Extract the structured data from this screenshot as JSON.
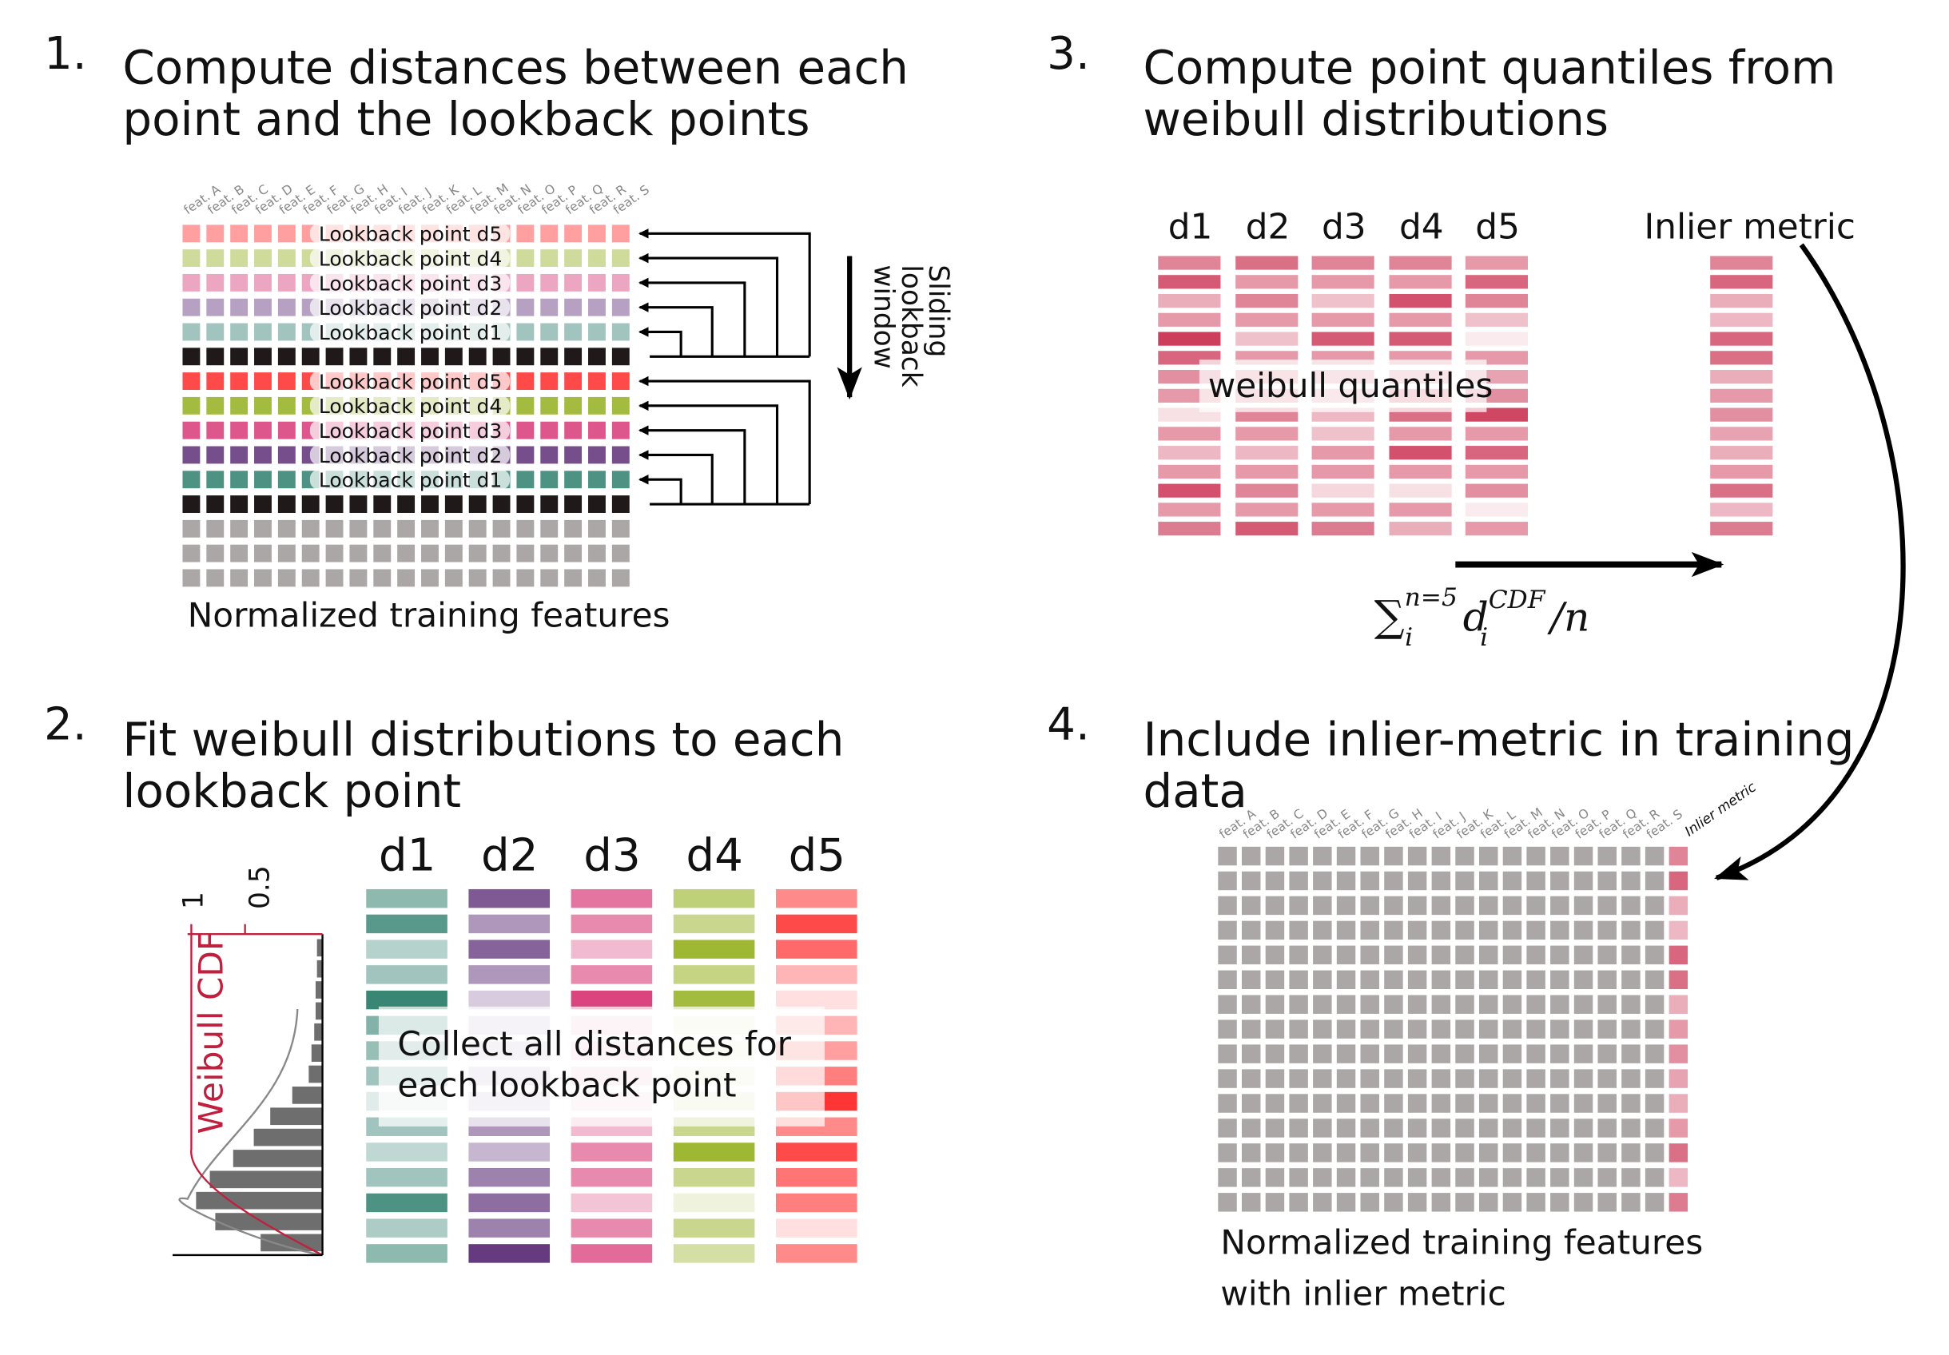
{
  "panels": {
    "p1": {
      "number": "1.",
      "title_line1": "Compute distances between each",
      "title_line2": "point and the lookback points",
      "caption": "Normalized training features",
      "lookback_labels": [
        "Lookback point d5",
        "Lookback point d4",
        "Lookback point d3",
        "Lookback point d2",
        "Lookback point d1"
      ],
      "sliding_label": [
        "Sliding",
        "lookback",
        "window"
      ]
    },
    "p2": {
      "number": "2.",
      "title_line1": "Fit weibull distributions to each",
      "title_line2": "lookback point",
      "overlay_line1": "Collect all distances for",
      "overlay_line2": "each lookback point",
      "cdf_label": "Weibull CDF",
      "tick_1": "1",
      "tick_05": "0.5"
    },
    "p3": {
      "number": "3.",
      "title_line1": "Compute point quantiles from",
      "title_line2": "weibull distributions",
      "overlay": "weibull quantiles",
      "inlier_header": "Inlier metric",
      "formula": {
        "sum": "∑",
        "sub_i": "i",
        "sup": "n=5",
        "d": "d",
        "d_sub": "i",
        "d_sup": "CDF",
        "tail": "/n"
      }
    },
    "p4": {
      "number": "4.",
      "title_line1": "Include inlier-metric in training",
      "title_line2": "data",
      "caption_line1": "Normalized training features",
      "caption_line2": "with inlier metric",
      "inlier_col_label": "Inlier metric"
    }
  },
  "feature_labels": [
    "feat. A",
    "feat. B",
    "feat. C",
    "feat. D",
    "feat. E",
    "feat. F",
    "feat. G",
    "feat. H",
    "feat. I",
    "feat. J",
    "feat. K",
    "feat. L",
    "feat. M",
    "feat. N",
    "feat. O",
    "feat. P",
    "feat. Q",
    "feat. R",
    "feat. S"
  ],
  "lookback_headers": [
    "d1",
    "d2",
    "d3",
    "d4",
    "d5"
  ],
  "colors": {
    "d1": "#2f7f6e",
    "d2": "#5e2f78",
    "d3": "#d83a78",
    "d4": "#93b01e",
    "d5": "#ff2a2a",
    "quantile": "#c8284a",
    "black_row": "#1f1a19",
    "gray": "#aaa7a6",
    "cdf": "#c0203e"
  },
  "distance_intensities": {
    "d1": [
      0.55,
      0.8,
      0.35,
      0.45,
      0.95,
      0.6,
      0.5,
      0.45,
      0.15,
      0.45,
      0.3,
      0.45,
      0.85,
      0.4,
      0.55
    ],
    "d2": [
      0.8,
      0.5,
      0.75,
      0.5,
      0.25,
      0.2,
      0.2,
      0.2,
      0.2,
      0.5,
      0.35,
      0.6,
      0.7,
      0.6,
      0.95
    ],
    "d3": [
      0.7,
      0.6,
      0.35,
      0.6,
      0.95,
      0.2,
      0.2,
      0.2,
      0.15,
      0.35,
      0.6,
      0.6,
      0.3,
      0.6,
      0.75
    ],
    "d4": [
      0.6,
      0.5,
      0.9,
      0.55,
      0.85,
      0.15,
      0.15,
      0.15,
      0.2,
      0.5,
      0.9,
      0.5,
      0.15,
      0.5,
      0.4
    ],
    "d5": [
      0.55,
      0.85,
      0.7,
      0.35,
      0.15,
      0.35,
      0.45,
      0.6,
      0.95,
      0.55,
      0.85,
      0.65,
      0.6,
      0.15,
      0.55
    ]
  },
  "histogram": [
    0.04,
    0.04,
    0.05,
    0.05,
    0.06,
    0.08,
    0.1,
    0.22,
    0.38,
    0.5,
    0.65,
    0.82,
    0.92,
    0.78,
    0.45
  ],
  "quantile_intensities": {
    "d1": [
      0.6,
      0.8,
      0.4,
      0.5,
      0.95,
      0.75,
      0.55,
      0.5,
      0.15,
      0.5,
      0.35,
      0.5,
      0.85,
      0.5,
      0.65
    ],
    "d2": [
      0.7,
      0.5,
      0.6,
      0.5,
      0.3,
      0.5,
      0.5,
      0.5,
      0.6,
      0.5,
      0.35,
      0.5,
      0.6,
      0.5,
      0.8
    ],
    "d3": [
      0.6,
      0.5,
      0.3,
      0.5,
      0.8,
      0.5,
      0.45,
      0.4,
      0.35,
      0.3,
      0.5,
      0.5,
      0.2,
      0.5,
      0.65
    ],
    "d4": [
      0.6,
      0.5,
      0.85,
      0.5,
      0.8,
      0.5,
      0.45,
      0.6,
      0.7,
      0.5,
      0.85,
      0.5,
      0.15,
      0.5,
      0.4
    ],
    "d5": [
      0.5,
      0.75,
      0.6,
      0.3,
      0.1,
      0.5,
      0.45,
      0.55,
      0.9,
      0.5,
      0.75,
      0.5,
      0.55,
      0.1,
      0.5
    ],
    "inlier": [
      0.6,
      0.75,
      0.4,
      0.35,
      0.75,
      0.7,
      0.4,
      0.5,
      0.55,
      0.45,
      0.4,
      0.5,
      0.7,
      0.35,
      0.65
    ]
  }
}
